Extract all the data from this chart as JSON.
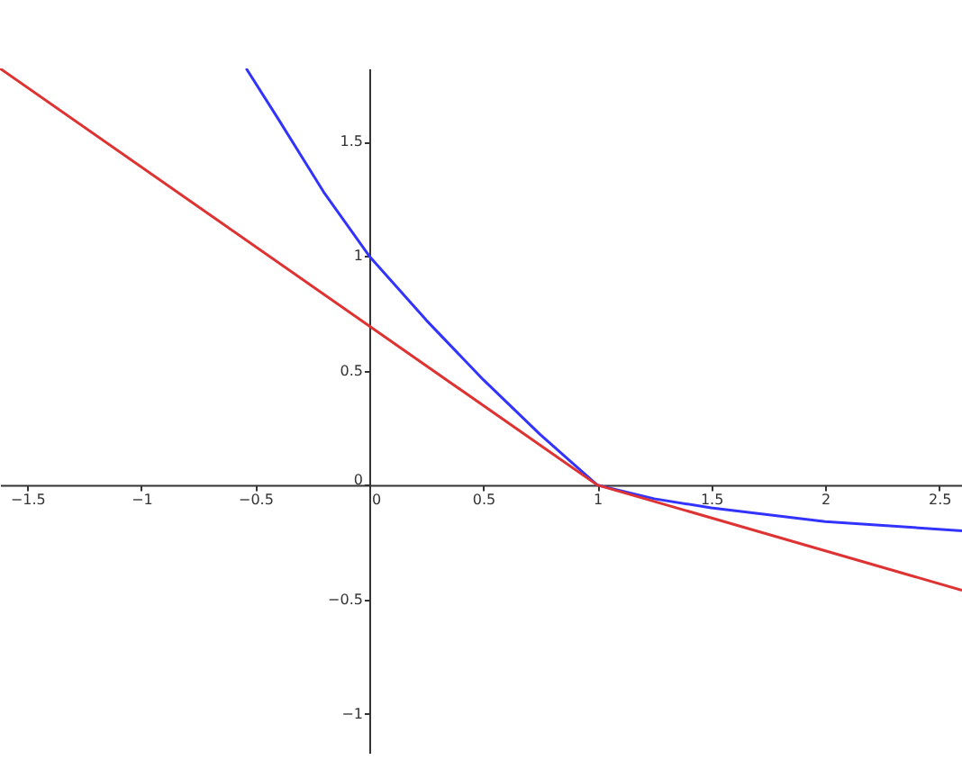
{
  "chart_data": {
    "type": "line",
    "xlim": [
      -1.62,
      2.6
    ],
    "ylim": [
      -1.17,
      1.82
    ],
    "xticks": [
      -1.5,
      -1,
      -0.5,
      0,
      0.5,
      1,
      1.5,
      2,
      2.5
    ],
    "yticks": [
      -1,
      -0.5,
      0,
      0.5,
      1,
      1.5
    ],
    "grid": false,
    "marker": "none",
    "line_style": "solid",
    "series": [
      {
        "color": "#3333ff",
        "x": [
          -0.54,
          -0.4,
          -0.2,
          0,
          0.25,
          0.5,
          0.75,
          1,
          1.25,
          1.5,
          2,
          2.6
        ],
        "values": [
          1.82,
          1.6,
          1.28,
          1,
          0.72,
          0.46,
          0.22,
          0,
          -0.06,
          -0.1,
          -0.16,
          -0.2
        ]
      },
      {
        "color": "#dd3333",
        "x": [
          -1.62,
          1,
          2.6
        ],
        "values": [
          1.82,
          0,
          -0.46
        ]
      }
    ]
  }
}
